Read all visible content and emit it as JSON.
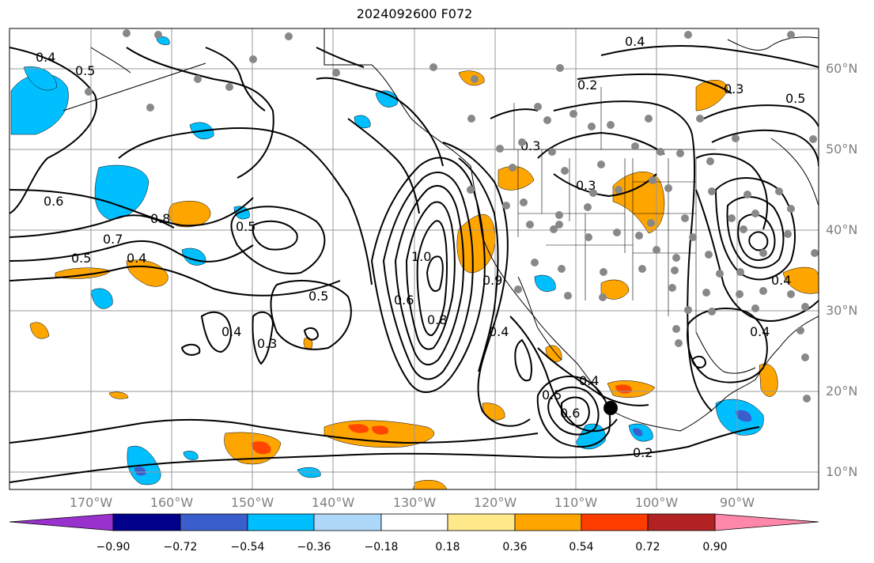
{
  "title": "2024092600 F072",
  "lat_labels": [
    "60°N",
    "50°N",
    "40°N",
    "30°N",
    "20°N",
    "10°N"
  ],
  "lon_labels": [
    "170°W",
    "160°W",
    "150°W",
    "140°W",
    "130°W",
    "120°W",
    "110°W",
    "100°W",
    "90°W"
  ],
  "contour_labels": [
    "0.4",
    "0.5",
    "0.6",
    "0.7",
    "0.8",
    "0.5",
    "0.4",
    "0.5",
    "0.3",
    "0.4",
    "1.0",
    "0.9",
    "0.8",
    "0.6",
    "0.4",
    "0.5",
    "0.6",
    "0.4",
    "0.2",
    "0.3",
    "0.3",
    "0.2",
    "0.4",
    "0.5",
    "0.3",
    "0.4",
    "0.4",
    "0.5"
  ],
  "colorbar": {
    "ticks": [
      "−0.90",
      "−0.72",
      "−0.54",
      "−0.36",
      "−0.18",
      "0.18",
      "0.36",
      "0.54",
      "0.72",
      "0.90"
    ],
    "colors": [
      "#9932cc",
      "#00008b",
      "#3a5fcd",
      "#00bfff",
      "#add8fa",
      "#ffffff",
      "#ffe98a",
      "#ffa500",
      "#ff3c00",
      "#b22222",
      "#ff88aa"
    ]
  },
  "colors": {
    "warm": "#ffa500",
    "warm_strong": "#ff4500",
    "cold": "#00bfff",
    "cold_strong": "#3a5fcd",
    "station": "#888888",
    "grid": "#999999"
  }
}
